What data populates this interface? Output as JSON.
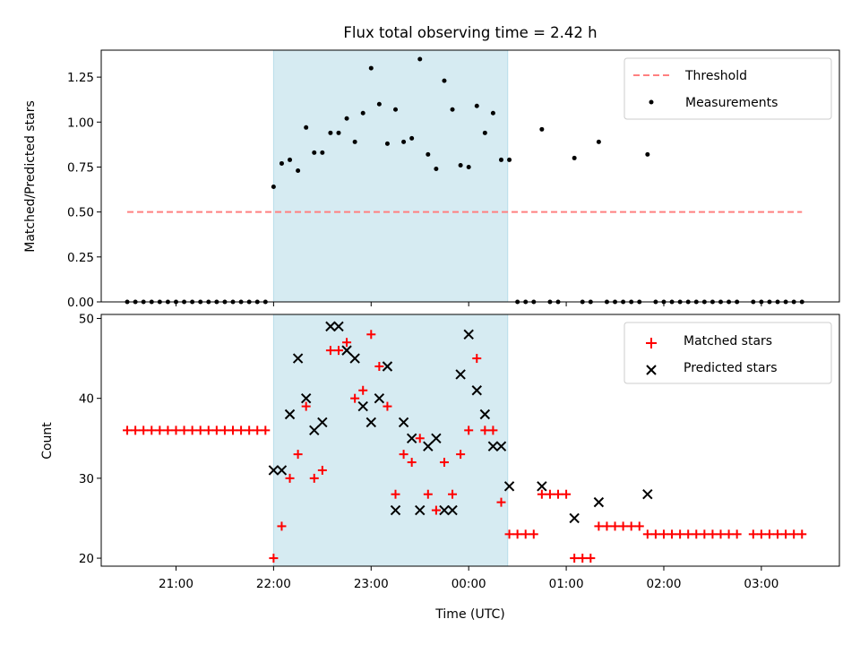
{
  "chart_data": [
    {
      "type": "scatter",
      "title": "Flux total observing time = 2.42 h",
      "ylabel": "Matched/Predicted stars",
      "xlabel": "",
      "ylim": [
        0,
        1.4
      ],
      "xlim": [
        "20:14",
        "03:48"
      ],
      "yticks": [
        "0.00",
        "0.25",
        "0.50",
        "0.75",
        "1.00",
        "1.25"
      ],
      "shaded_span": {
        "start": "22:00",
        "end": "00:24",
        "color": "#add8e6"
      },
      "legend": {
        "position": "upper right",
        "entries": [
          "Threshold",
          "Measurements"
        ]
      },
      "threshold": {
        "name": "Threshold",
        "value": 0.5,
        "x_start": "20:30",
        "x_end": "03:25",
        "color": "#ff8080",
        "style": "dashed"
      },
      "series": [
        {
          "name": "Measurements",
          "marker": "dot",
          "color": "#000000",
          "points": [
            [
              "20:30",
              0
            ],
            [
              "20:35",
              0
            ],
            [
              "20:40",
              0
            ],
            [
              "20:45",
              0
            ],
            [
              "20:50",
              0
            ],
            [
              "20:55",
              0
            ],
            [
              "21:00",
              0
            ],
            [
              "21:05",
              0
            ],
            [
              "21:10",
              0
            ],
            [
              "21:15",
              0
            ],
            [
              "21:20",
              0
            ],
            [
              "21:25",
              0
            ],
            [
              "21:30",
              0
            ],
            [
              "21:35",
              0
            ],
            [
              "21:40",
              0
            ],
            [
              "21:45",
              0
            ],
            [
              "21:50",
              0
            ],
            [
              "21:55",
              0
            ],
            [
              "22:00",
              0.64
            ],
            [
              "22:05",
              0.77
            ],
            [
              "22:10",
              0.79
            ],
            [
              "22:15",
              0.73
            ],
            [
              "22:20",
              0.97
            ],
            [
              "22:25",
              0.83
            ],
            [
              "22:30",
              0.83
            ],
            [
              "22:35",
              0.94
            ],
            [
              "22:40",
              0.94
            ],
            [
              "22:45",
              1.02
            ],
            [
              "22:50",
              0.89
            ],
            [
              "22:55",
              1.05
            ],
            [
              "23:00",
              1.3
            ],
            [
              "23:05",
              1.1
            ],
            [
              "23:10",
              0.88
            ],
            [
              "23:15",
              1.07
            ],
            [
              "23:20",
              0.89
            ],
            [
              "23:25",
              0.91
            ],
            [
              "23:30",
              1.35
            ],
            [
              "23:35",
              0.82
            ],
            [
              "23:40",
              0.74
            ],
            [
              "23:45",
              1.23
            ],
            [
              "23:50",
              1.07
            ],
            [
              "23:55",
              0.76
            ],
            [
              "00:00",
              0.75
            ],
            [
              "00:05",
              1.09
            ],
            [
              "00:10",
              0.94
            ],
            [
              "00:15",
              1.05
            ],
            [
              "00:20",
              0.79
            ],
            [
              "00:25",
              0.79
            ],
            [
              "00:30",
              0
            ],
            [
              "00:35",
              0
            ],
            [
              "00:40",
              0
            ],
            [
              "00:45",
              0.96
            ],
            [
              "00:50",
              0
            ],
            [
              "00:55",
              0
            ],
            [
              "01:05",
              0.8
            ],
            [
              "01:10",
              0
            ],
            [
              "01:15",
              0
            ],
            [
              "01:20",
              0.89
            ],
            [
              "01:25",
              0
            ],
            [
              "01:30",
              0
            ],
            [
              "01:35",
              0
            ],
            [
              "01:40",
              0
            ],
            [
              "01:45",
              0
            ],
            [
              "01:50",
              0.82
            ],
            [
              "01:55",
              0
            ],
            [
              "02:00",
              0
            ],
            [
              "02:05",
              0
            ],
            [
              "02:10",
              0
            ],
            [
              "02:15",
              0
            ],
            [
              "02:20",
              0
            ],
            [
              "02:25",
              0
            ],
            [
              "02:30",
              0
            ],
            [
              "02:35",
              0
            ],
            [
              "02:40",
              0
            ],
            [
              "02:45",
              0
            ],
            [
              "02:55",
              0
            ],
            [
              "03:00",
              0
            ],
            [
              "03:05",
              0
            ],
            [
              "03:10",
              0
            ],
            [
              "03:15",
              0
            ],
            [
              "03:20",
              0
            ],
            [
              "03:25",
              0
            ]
          ]
        }
      ]
    },
    {
      "type": "scatter",
      "title": "",
      "ylabel": "Count",
      "xlabel": "Time (UTC)",
      "ylim": [
        19,
        50.5
      ],
      "xlim": [
        "20:14",
        "03:48"
      ],
      "xticks": [
        "21:00",
        "22:00",
        "23:00",
        "00:00",
        "01:00",
        "02:00",
        "03:00"
      ],
      "yticks": [
        "20",
        "30",
        "40",
        "50"
      ],
      "shaded_span": {
        "start": "22:00",
        "end": "00:24",
        "color": "#add8e6"
      },
      "legend": {
        "position": "upper right",
        "entries": [
          "Matched stars",
          "Predicted stars"
        ]
      },
      "series": [
        {
          "name": "Matched stars",
          "marker": "plus",
          "color": "#ff0000",
          "points": [
            [
              "20:30",
              36
            ],
            [
              "20:35",
              36
            ],
            [
              "20:40",
              36
            ],
            [
              "20:45",
              36
            ],
            [
              "20:50",
              36
            ],
            [
              "20:55",
              36
            ],
            [
              "21:00",
              36
            ],
            [
              "21:05",
              36
            ],
            [
              "21:10",
              36
            ],
            [
              "21:15",
              36
            ],
            [
              "21:20",
              36
            ],
            [
              "21:25",
              36
            ],
            [
              "21:30",
              36
            ],
            [
              "21:35",
              36
            ],
            [
              "21:40",
              36
            ],
            [
              "21:45",
              36
            ],
            [
              "21:50",
              36
            ],
            [
              "21:55",
              36
            ],
            [
              "22:00",
              20
            ],
            [
              "22:05",
              24
            ],
            [
              "22:10",
              30
            ],
            [
              "22:15",
              33
            ],
            [
              "22:20",
              39
            ],
            [
              "22:25",
              30
            ],
            [
              "22:30",
              31
            ],
            [
              "22:35",
              46
            ],
            [
              "22:40",
              46
            ],
            [
              "22:45",
              47
            ],
            [
              "22:50",
              40
            ],
            [
              "22:55",
              41
            ],
            [
              "23:00",
              48
            ],
            [
              "23:05",
              44
            ],
            [
              "23:10",
              39
            ],
            [
              "23:15",
              28
            ],
            [
              "23:20",
              33
            ],
            [
              "23:25",
              32
            ],
            [
              "23:30",
              35
            ],
            [
              "23:35",
              28
            ],
            [
              "23:40",
              26
            ],
            [
              "23:45",
              32
            ],
            [
              "23:50",
              28
            ],
            [
              "23:55",
              33
            ],
            [
              "00:00",
              36
            ],
            [
              "00:05",
              45
            ],
            [
              "00:10",
              36
            ],
            [
              "00:15",
              36
            ],
            [
              "00:20",
              27
            ],
            [
              "00:25",
              23
            ],
            [
              "00:30",
              23
            ],
            [
              "00:35",
              23
            ],
            [
              "00:40",
              23
            ],
            [
              "00:45",
              28
            ],
            [
              "00:50",
              28
            ],
            [
              "00:55",
              28
            ],
            [
              "01:00",
              28
            ],
            [
              "01:05",
              20
            ],
            [
              "01:10",
              20
            ],
            [
              "01:15",
              20
            ],
            [
              "01:20",
              24
            ],
            [
              "01:25",
              24
            ],
            [
              "01:30",
              24
            ],
            [
              "01:35",
              24
            ],
            [
              "01:40",
              24
            ],
            [
              "01:45",
              24
            ],
            [
              "01:50",
              23
            ],
            [
              "01:55",
              23
            ],
            [
              "02:00",
              23
            ],
            [
              "02:05",
              23
            ],
            [
              "02:10",
              23
            ],
            [
              "02:15",
              23
            ],
            [
              "02:20",
              23
            ],
            [
              "02:25",
              23
            ],
            [
              "02:30",
              23
            ],
            [
              "02:35",
              23
            ],
            [
              "02:40",
              23
            ],
            [
              "02:45",
              23
            ],
            [
              "02:55",
              23
            ],
            [
              "03:00",
              23
            ],
            [
              "03:05",
              23
            ],
            [
              "03:10",
              23
            ],
            [
              "03:15",
              23
            ],
            [
              "03:20",
              23
            ],
            [
              "03:25",
              23
            ]
          ]
        },
        {
          "name": "Predicted stars",
          "marker": "x",
          "color": "#000000",
          "points": [
            [
              "22:00",
              31
            ],
            [
              "22:05",
              31
            ],
            [
              "22:10",
              38
            ],
            [
              "22:15",
              45
            ],
            [
              "22:20",
              40
            ],
            [
              "22:25",
              36
            ],
            [
              "22:30",
              37
            ],
            [
              "22:35",
              49
            ],
            [
              "22:40",
              49
            ],
            [
              "22:45",
              46
            ],
            [
              "22:50",
              45
            ],
            [
              "22:55",
              39
            ],
            [
              "23:00",
              37
            ],
            [
              "23:05",
              40
            ],
            [
              "23:10",
              44
            ],
            [
              "23:15",
              26
            ],
            [
              "23:20",
              37
            ],
            [
              "23:25",
              35
            ],
            [
              "23:30",
              26
            ],
            [
              "23:35",
              34
            ],
            [
              "23:40",
              35
            ],
            [
              "23:45",
              26
            ],
            [
              "23:50",
              26
            ],
            [
              "23:55",
              43
            ],
            [
              "00:00",
              48
            ],
            [
              "00:05",
              41
            ],
            [
              "00:10",
              38
            ],
            [
              "00:15",
              34
            ],
            [
              "00:20",
              34
            ],
            [
              "00:25",
              29
            ],
            [
              "00:45",
              29
            ],
            [
              "01:05",
              25
            ],
            [
              "01:20",
              27
            ],
            [
              "01:50",
              28
            ]
          ]
        }
      ]
    }
  ]
}
